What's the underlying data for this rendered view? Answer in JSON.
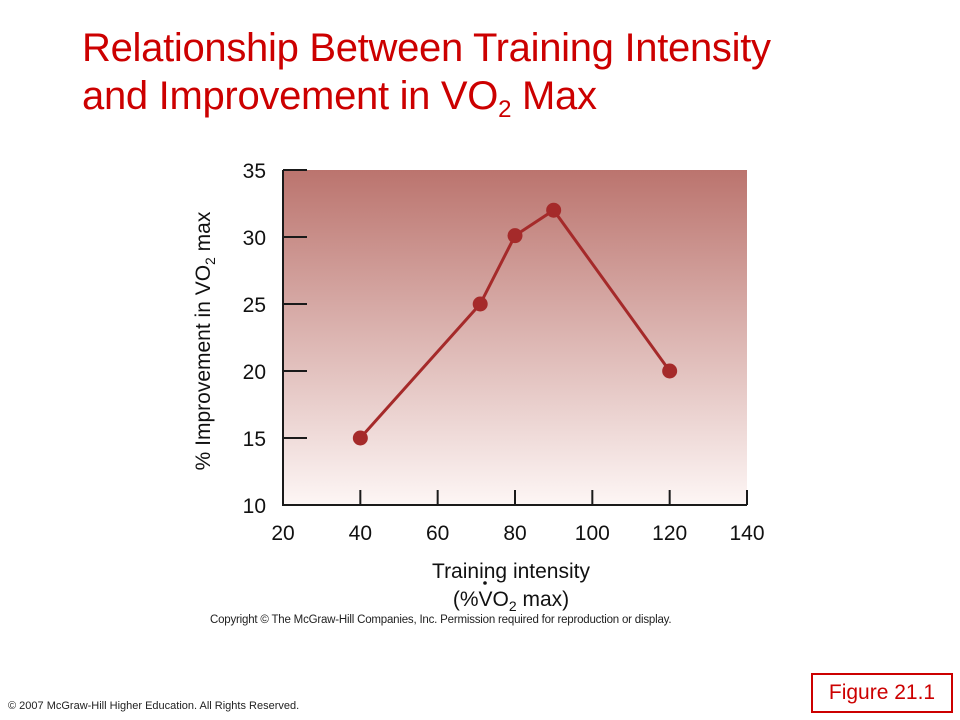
{
  "slide": {
    "title_line1": "Relationship Between Training Intensity",
    "title_line2_pre": "and Improvement in VO",
    "title_line2_sub": "2",
    "title_line2_post": " Max",
    "figure_copyright": "Copyright © The McGraw-Hill Companies, Inc. Permission required for reproduction or display.",
    "footer": "© 2007 McGraw-Hill Higher Education. All Rights Reserved.",
    "figure_label": "Figure 21.1",
    "accent_color": "#cc0000"
  },
  "chart_data": {
    "type": "line",
    "title": "",
    "xlabel_line1": "Training intensity",
    "xlabel_line2_pre": "(%VO",
    "xlabel_line2_sub": "2",
    "xlabel_line2_post": " max)",
    "ylabel_pre": "% Improvement in VO",
    "ylabel_sub": "2",
    "ylabel_post": " max",
    "xlim": [
      20,
      140
    ],
    "ylim": [
      10,
      35
    ],
    "xticks": [
      20,
      40,
      60,
      80,
      100,
      120,
      140
    ],
    "yticks": [
      10,
      15,
      20,
      25,
      30,
      35
    ],
    "series": [
      {
        "x": [
          40,
          71,
          80,
          90,
          120
        ],
        "y": [
          15,
          25,
          30.1,
          32,
          20
        ]
      }
    ],
    "line_color": "#a52a2a",
    "background_gradient": [
      "#bb746e",
      "#fdf6f5"
    ],
    "grid": false,
    "legend": "none"
  }
}
